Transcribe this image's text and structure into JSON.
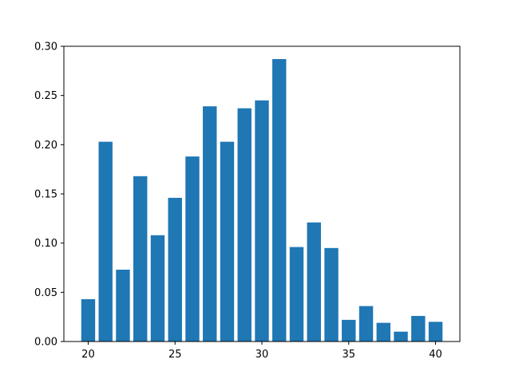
{
  "chart_data": {
    "type": "bar",
    "title": "",
    "xlabel": "",
    "ylabel": "",
    "x": [
      20,
      21,
      22,
      23,
      24,
      25,
      26,
      27,
      28,
      29,
      30,
      31,
      32,
      33,
      34,
      35,
      36,
      37,
      38,
      39,
      40
    ],
    "values": [
      0.043,
      0.203,
      0.073,
      0.168,
      0.108,
      0.146,
      0.188,
      0.239,
      0.203,
      0.237,
      0.245,
      0.287,
      0.096,
      0.121,
      0.095,
      0.022,
      0.036,
      0.019,
      0.01,
      0.026,
      0.02
    ],
    "xlim": [
      18.6,
      41.4
    ],
    "ylim": [
      0,
      0.3
    ],
    "xticks": [
      20,
      25,
      30,
      35,
      40
    ],
    "xtick_labels": [
      "20",
      "25",
      "30",
      "35",
      "40"
    ],
    "yticks": [
      0,
      0.05,
      0.1,
      0.15,
      0.2,
      0.25,
      0.3
    ],
    "ytick_labels": [
      "0.00",
      "0.05",
      "0.10",
      "0.15",
      "0.20",
      "0.25",
      "0.30"
    ],
    "bar_color": "#1f77b4",
    "grid": false,
    "legend": "none"
  }
}
